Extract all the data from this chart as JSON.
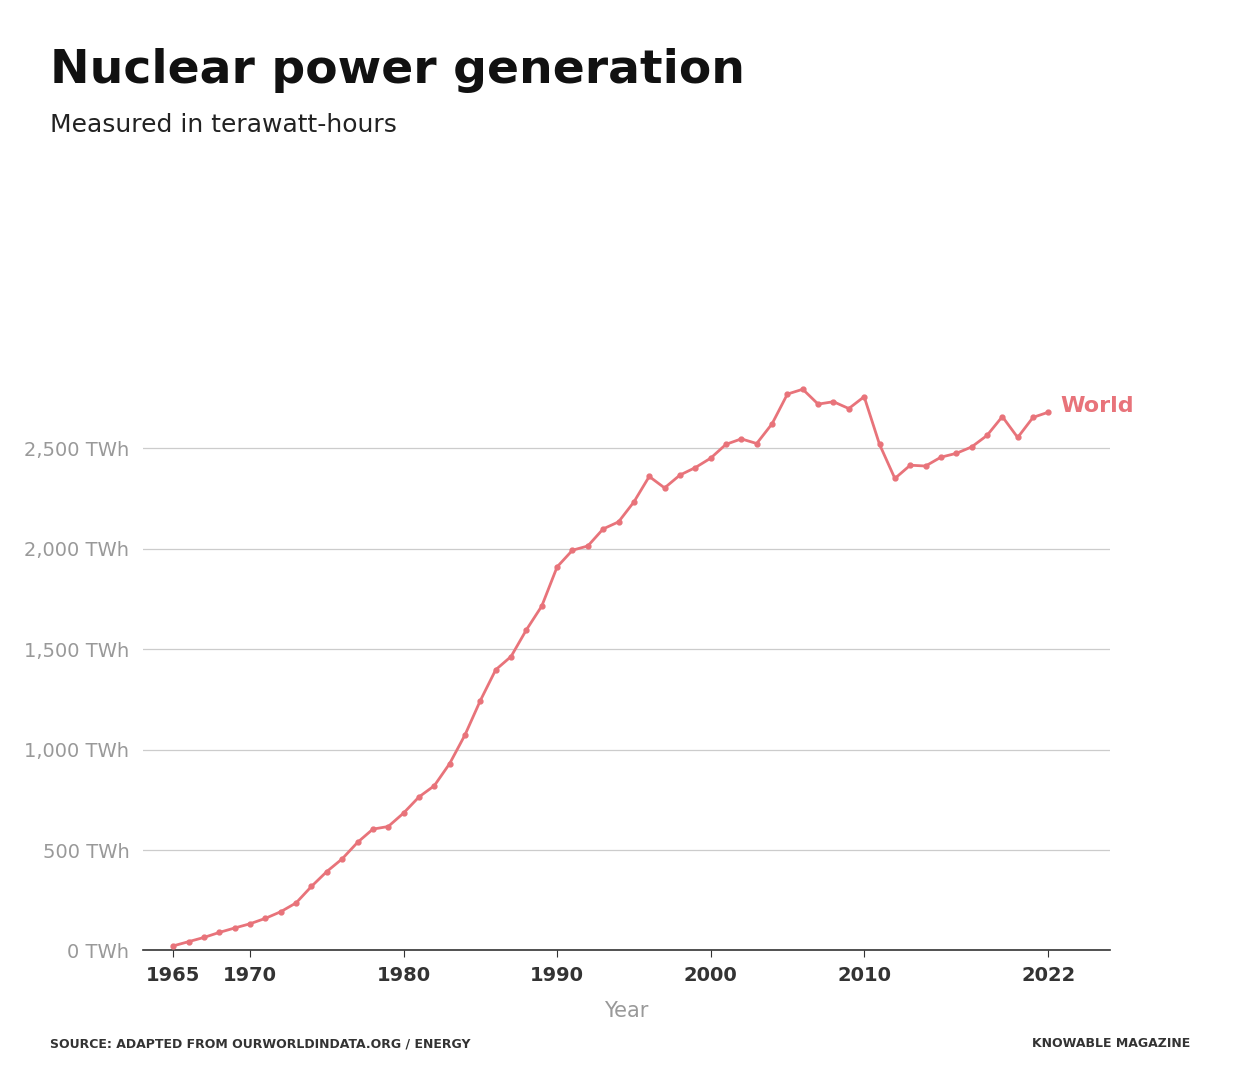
{
  "title": "Nuclear power generation",
  "subtitle": "Measured in terawatt-hours",
  "xlabel": "Year",
  "source_left": "SOURCE: ADAPTED FROM OURWORLDINDATA.ORG / ENERGY",
  "source_right": "KNOWABLE MAGAZINE",
  "line_color": "#e8737a",
  "line_label": "World",
  "background_color": "#ffffff",
  "top_bar_color": "#b8d4d8",
  "logo_bg_color": "#0d2b5e",
  "logo_red_color": "#cc2229",
  "years": [
    1965,
    1966,
    1967,
    1968,
    1969,
    1970,
    1971,
    1972,
    1973,
    1974,
    1975,
    1976,
    1977,
    1978,
    1979,
    1980,
    1981,
    1982,
    1983,
    1984,
    1985,
    1986,
    1987,
    1988,
    1989,
    1990,
    1991,
    1992,
    1993,
    1994,
    1995,
    1996,
    1997,
    1998,
    1999,
    2000,
    2001,
    2002,
    2003,
    2004,
    2005,
    2006,
    2007,
    2008,
    2009,
    2010,
    2011,
    2012,
    2013,
    2014,
    2015,
    2016,
    2017,
    2018,
    2019,
    2020,
    2021,
    2022
  ],
  "values": [
    23,
    44,
    65,
    90,
    112,
    133,
    160,
    193,
    237,
    319,
    393,
    456,
    538,
    604,
    617,
    684,
    764,
    820,
    930,
    1073,
    1244,
    1397,
    1463,
    1596,
    1714,
    1909,
    1992,
    2013,
    2098,
    2133,
    2232,
    2359,
    2302,
    2366,
    2403,
    2450,
    2519,
    2546,
    2523,
    2621,
    2769,
    2793,
    2719,
    2731,
    2697,
    2756,
    2519,
    2349,
    2415,
    2411,
    2455,
    2474,
    2506,
    2563,
    2657,
    2553,
    2653,
    2679
  ],
  "yticks": [
    0,
    500,
    1000,
    1500,
    2000,
    2500
  ],
  "ytick_labels": [
    "0 TWh",
    "500 TWh",
    "1,000 TWh",
    "1,500 TWh",
    "2,000 TWh",
    "2,500 TWh"
  ],
  "xticks": [
    1965,
    1970,
    1980,
    1990,
    2000,
    2010,
    2022
  ],
  "ylim": [
    0,
    3100
  ],
  "xlim": [
    1963,
    2026
  ]
}
